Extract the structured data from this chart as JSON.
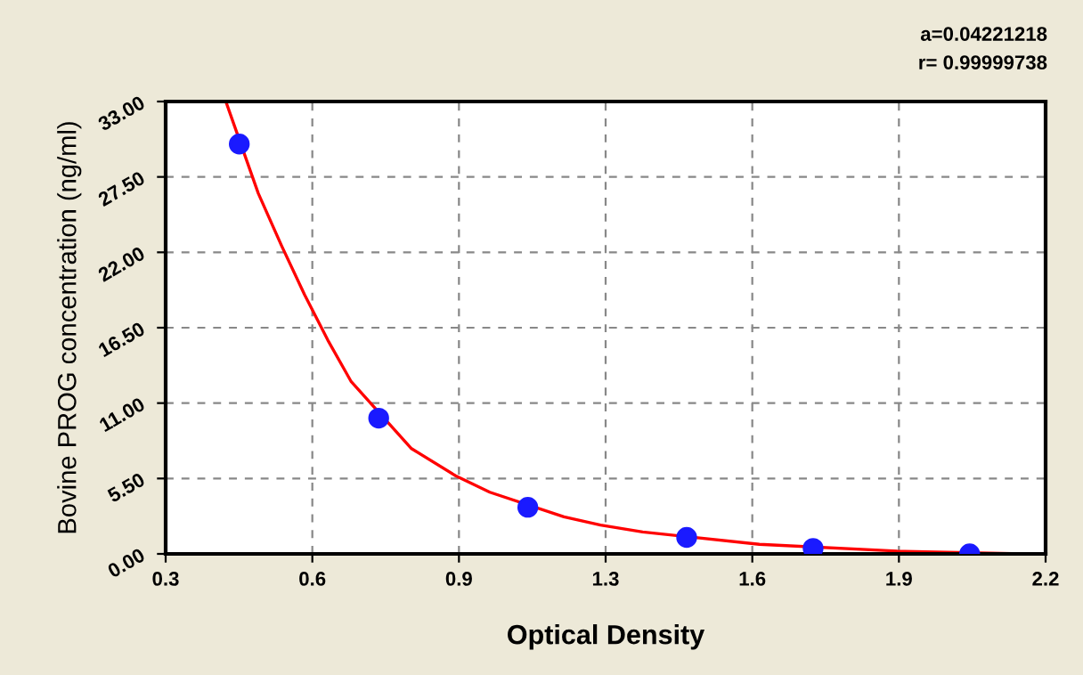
{
  "chart_data": {
    "type": "scatter",
    "xlabel": "Optical Density",
    "ylabel": "Bovine PROG concentration (ng/ml)",
    "annotations": [
      "a=0.04221218",
      "r= 0.99999738"
    ],
    "series": [
      {
        "color": "#1a1aff",
        "marker": "circle",
        "x": [
          0.459,
          0.76,
          1.082,
          1.425,
          1.698,
          2.036
        ],
        "values": [
          29.9,
          9.9,
          3.4,
          1.2,
          0.4,
          0.0
        ]
      },
      {
        "type": "line",
        "color": "#ff0000",
        "marker": "none",
        "line_style": "solid",
        "x": [
          0.43,
          0.5,
          0.55,
          0.6,
          0.65,
          0.7,
          0.83,
          0.926,
          1.0,
          1.16,
          1.239,
          1.33,
          1.582,
          1.88,
          2.148
        ],
        "values": [
          33.0,
          26.3,
          22.5,
          18.9,
          15.6,
          12.6,
          7.7,
          5.7,
          4.5,
          2.7,
          2.1,
          1.6,
          0.7,
          0.2,
          0.0
        ]
      }
    ],
    "xlim": [
      0.3,
      2.2
    ],
    "ylim": [
      0,
      33
    ],
    "xticks": [
      0.3,
      {
        "value": 0.6167,
        "label": "0.6"
      },
      {
        "value": 0.9333,
        "label": "0.9"
      },
      {
        "value": 1.25,
        "label": "1.3"
      },
      {
        "value": 1.5667,
        "label": "1.6"
      },
      {
        "value": 1.8833,
        "label": "1.9"
      },
      2.2
    ],
    "yticks": [
      {
        "value": 0,
        "label": "0.00"
      },
      {
        "value": 5.5,
        "label": "5.50"
      },
      {
        "value": 11,
        "label": "11.00"
      },
      {
        "value": 16.5,
        "label": "16.50"
      },
      {
        "value": 22,
        "label": "22.00"
      },
      {
        "value": 27.5,
        "label": "27.50"
      },
      {
        "value": 33,
        "label": "33.00"
      }
    ],
    "grid": true,
    "legend": false
  }
}
